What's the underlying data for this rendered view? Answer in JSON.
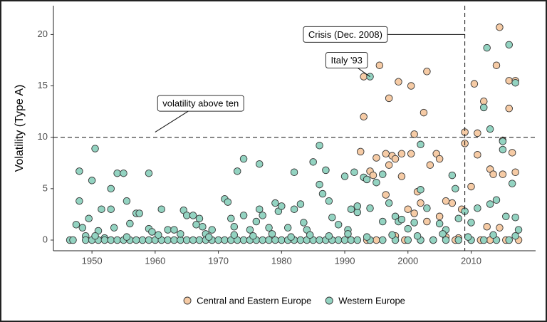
{
  "chart_data": {
    "type": "scatter",
    "ylabel": "Volatility (Type A)",
    "xlim": [
      1943.9,
      2020.2
    ],
    "ylim": [
      -1.04,
      22.8
    ],
    "xticks": [
      1950,
      1960,
      1970,
      1980,
      1990,
      2000,
      2010
    ],
    "yticks": [
      0,
      5,
      10,
      15,
      20
    ],
    "grid": false,
    "legend": "bottom",
    "hline": 10,
    "vline": 2009,
    "annotations": [
      {
        "text": "Crisis (Dec. 2008)",
        "x": 1990.1,
        "y": 20,
        "target": [
          2009,
          20
        ]
      },
      {
        "text": "Italy '93",
        "x": 1990.3,
        "y": 17.5,
        "target": [
          1994,
          15.9
        ]
      },
      {
        "text": "volatility above ten",
        "x": 1967.2,
        "y": 13.3,
        "target": [
          1960,
          10.5
        ]
      }
    ],
    "series": [
      {
        "name": "Central and Eastern Europe",
        "color": "#f6cba5",
        "x": [
          1992.5,
          1993,
          1993,
          1994,
          1995.5,
          1997,
          1998.5,
          2000.5,
          2003,
          2002.5,
          2001,
          1995,
          1994.5,
          1996.5,
          1997.5,
          1998,
          1999,
          1997,
          1999,
          2000.5,
          2001.5,
          2002,
          2003.5,
          2004.5,
          2005,
          2006,
          2007,
          2008.5,
          2009,
          2009,
          2010,
          2010.5,
          2011,
          2011,
          2012,
          2013,
          2013.5,
          2014,
          2014.5,
          2015,
          2015,
          2016,
          2016,
          2016.5,
          2017,
          2017,
          1996.5,
          2000,
          2001,
          2003,
          2005,
          2012.5,
          2014.5,
          1998,
          2006,
          2008,
          1993.5,
          1995,
          1999.5,
          2002,
          2004,
          2007.5,
          2010,
          2011.5,
          2013,
          2015.5,
          2017.5
        ],
        "values": [
          8.6,
          12.0,
          15.9,
          6.7,
          17.0,
          13.8,
          15.4,
          15.0,
          16.4,
          12.4,
          10.3,
          8.0,
          6.3,
          8.4,
          8.2,
          7.9,
          8.4,
          7.3,
          6.2,
          8.4,
          4.7,
          3.6,
          7.3,
          8.4,
          7.9,
          3.8,
          3.6,
          3.0,
          10.5,
          9.4,
          5.2,
          15.2,
          10.4,
          8.3,
          13.5,
          6.9,
          6.4,
          17.0,
          20.7,
          9.7,
          6.4,
          15.5,
          12.8,
          8.5,
          6.6,
          15.5,
          4.4,
          3.0,
          2.6,
          1.8,
          2.3,
          1.3,
          1.2,
          0.4,
          0.3,
          0.2,
          0,
          0,
          0,
          0,
          0,
          0,
          0,
          0,
          0,
          0,
          0
        ]
      },
      {
        "name": "Western Europe",
        "color": "#93d3c1",
        "x": [
          1946.5,
          1947.5,
          1948,
          1948,
          1948.5,
          1949,
          1949.5,
          1950,
          1950.5,
          1951,
          1951.5,
          1952,
          1953,
          1953,
          1953.5,
          1954,
          1955,
          1955.5,
          1956,
          1957,
          1957.5,
          1959,
          1959,
          1959.5,
          1961,
          1962,
          1963,
          1964.5,
          1965,
          1966,
          1966.5,
          1967,
          1967.5,
          1968,
          1969,
          1971,
          1971.5,
          1972,
          1972.5,
          1973,
          1974,
          1974,
          1975,
          1976,
          1976.5,
          1976.5,
          1977,
          1978,
          1979,
          1979.5,
          1980,
          1981,
          1982,
          1982,
          1983,
          1983.5,
          1984,
          1985,
          1986,
          1986,
          1986.5,
          1987,
          1987.5,
          1988,
          1989,
          1990,
          1990.5,
          1991,
          1991.5,
          1992,
          1992,
          1993,
          1993.5,
          1994,
          1994,
          1995,
          1996,
          1996,
          1997,
          1998,
          1998.5,
          1999,
          2000,
          2001,
          2002,
          2002,
          2003,
          2005,
          2006,
          2007,
          2007.5,
          2008,
          2009,
          2010,
          2011,
          2012,
          2012.5,
          2013,
          2013,
          2014,
          2015,
          2015,
          2016,
          2016.5,
          2017,
          2017,
          2017.5,
          2015.5,
          1947,
          1949,
          1950,
          1951,
          1952,
          1953,
          1954,
          1955,
          1956,
          1957,
          1958,
          1959,
          1960,
          1961,
          1962,
          1963,
          1964,
          1965,
          1966,
          1967,
          1968,
          1969,
          1970,
          1971,
          1972,
          1973,
          1974,
          1975,
          1976,
          1977,
          1978,
          1979,
          1980,
          1981,
          1982,
          1983,
          1984,
          1985,
          1986,
          1987,
          1988,
          1989,
          1990,
          1991,
          1992,
          1994,
          1996,
          1998,
          2000,
          2002,
          2004,
          2006,
          2008,
          2010,
          2012,
          2014,
          2016,
          1950.5,
          1955.5,
          1960.5,
          1964,
          1968.5,
          1972.5,
          1975.5,
          1978.5,
          1981.5,
          1984.5,
          1987.5,
          1990.5,
          1993.5,
          1997.5,
          2001.5,
          2005.5,
          2009.5,
          2013.5,
          2017
        ],
        "values": [
          0,
          1.5,
          3.8,
          6.7,
          1.2,
          0.4,
          2.1,
          5.8,
          8.9,
          0.9,
          3.0,
          0.2,
          5.0,
          3.0,
          1.2,
          6.5,
          6.5,
          3.8,
          1.6,
          2.6,
          2.6,
          6.5,
          1.1,
          0.8,
          3.0,
          1.0,
          1.0,
          2.9,
          2.4,
          2.4,
          1.5,
          2.1,
          1.3,
          0.6,
          1.0,
          4.0,
          3.7,
          2.1,
          1.3,
          6.7,
          7.9,
          2.4,
          1.0,
          1.8,
          3.0,
          7.4,
          2.4,
          1.2,
          3.6,
          2.8,
          3.3,
          1.2,
          6.6,
          3.0,
          3.5,
          1.7,
          1.0,
          7.6,
          9.2,
          5.4,
          4.5,
          6.8,
          3.8,
          2.2,
          1.5,
          6.2,
          1.0,
          3.0,
          6.6,
          2.7,
          3.3,
          6.1,
          5.9,
          15.9,
          3.1,
          5.6,
          6.4,
          1.8,
          3.6,
          2.3,
          1.8,
          2.0,
          1.1,
          1.7,
          9.3,
          4.9,
          3.1,
          1.6,
          1.0,
          6.3,
          5.0,
          2.1,
          2.8,
          1.7,
          3.1,
          12.9,
          18.7,
          10.8,
          3.5,
          3.9,
          9.6,
          8.8,
          19.0,
          5.5,
          15.3,
          2.2,
          1.0,
          2.3,
          0,
          0,
          0,
          0,
          0,
          0,
          0,
          0,
          0,
          0,
          0,
          0,
          0,
          0,
          0,
          0,
          0,
          0,
          0,
          0,
          0,
          0,
          0,
          0,
          0,
          0,
          0,
          0,
          0,
          0,
          0,
          0,
          0,
          0,
          0,
          0,
          0,
          0,
          0,
          0,
          0,
          0,
          0,
          0,
          0,
          0,
          0,
          0,
          0,
          0,
          0,
          0,
          0,
          0,
          0,
          0,
          0,
          0.4,
          0.3,
          0.5,
          0.6,
          0.3,
          0.5,
          0.4,
          0.6,
          0.3,
          0.5,
          0.4,
          0.6,
          0.3,
          0.5,
          0.4,
          0.6,
          0.3,
          0.5,
          0.4
        ]
      }
    ]
  }
}
